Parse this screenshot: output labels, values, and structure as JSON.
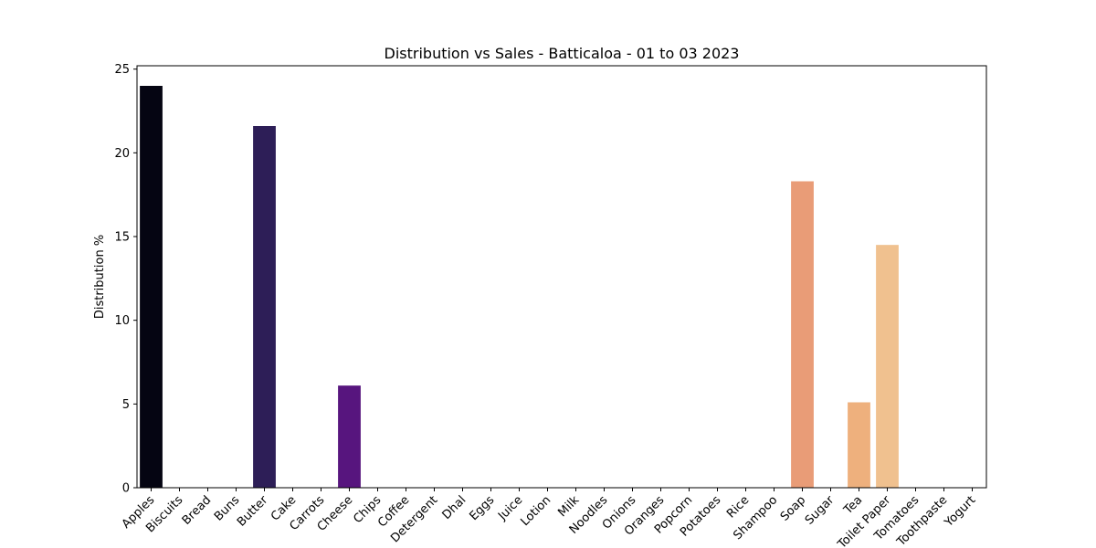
{
  "chart_data": {
    "type": "bar",
    "title": "Distribution vs Sales - Batticaloa - 01 to 03 2023",
    "xlabel": "",
    "ylabel": "Distribution %",
    "ylim": [
      0,
      25.2
    ],
    "yticks": [
      0,
      5,
      10,
      15,
      20,
      25
    ],
    "grid": false,
    "categories": [
      "Apples",
      "Biscuits",
      "Bread",
      "Buns",
      "Butter",
      "Cake",
      "Carrots",
      "Cheese",
      "Chips",
      "Coffee",
      "Detergent",
      "Dhal",
      "Eggs",
      "Juice",
      "Lotion",
      "Milk",
      "Noodles",
      "Onions",
      "Oranges",
      "Popcorn",
      "Potatoes",
      "Rice",
      "Shampoo",
      "Soap",
      "Sugar",
      "Tea",
      "Toilet Paper",
      "Tomatoes",
      "Toothpaste",
      "Yogurt"
    ],
    "values": [
      24.0,
      0,
      0,
      0,
      21.6,
      0,
      0,
      6.1,
      0,
      0,
      0,
      0,
      0,
      0,
      0,
      0,
      0,
      0,
      0,
      0,
      0,
      0,
      0,
      18.3,
      0,
      5.1,
      14.5,
      0,
      0,
      0
    ],
    "colors": [
      "#050512",
      "#0c0926",
      "#150e37",
      "#1e1149",
      "#2d1e57",
      "#3b0f70",
      "#4a1078",
      "#57157e",
      "#66197f",
      "#741c81",
      "#82207f",
      "#91247e",
      "#a02a7b",
      "#ae2f7a",
      "#bd3977",
      "#cb3e72",
      "#d8456c",
      "#e45466",
      "#ee6262",
      "#f4725c",
      "#f8845d",
      "#fb9463",
      "#fca36b",
      "#e99c77",
      "#fdbd84",
      "#eeb07d",
      "#f0c18f",
      "#fde5a6",
      "#fcf0b2",
      "#fcfdbf"
    ]
  }
}
